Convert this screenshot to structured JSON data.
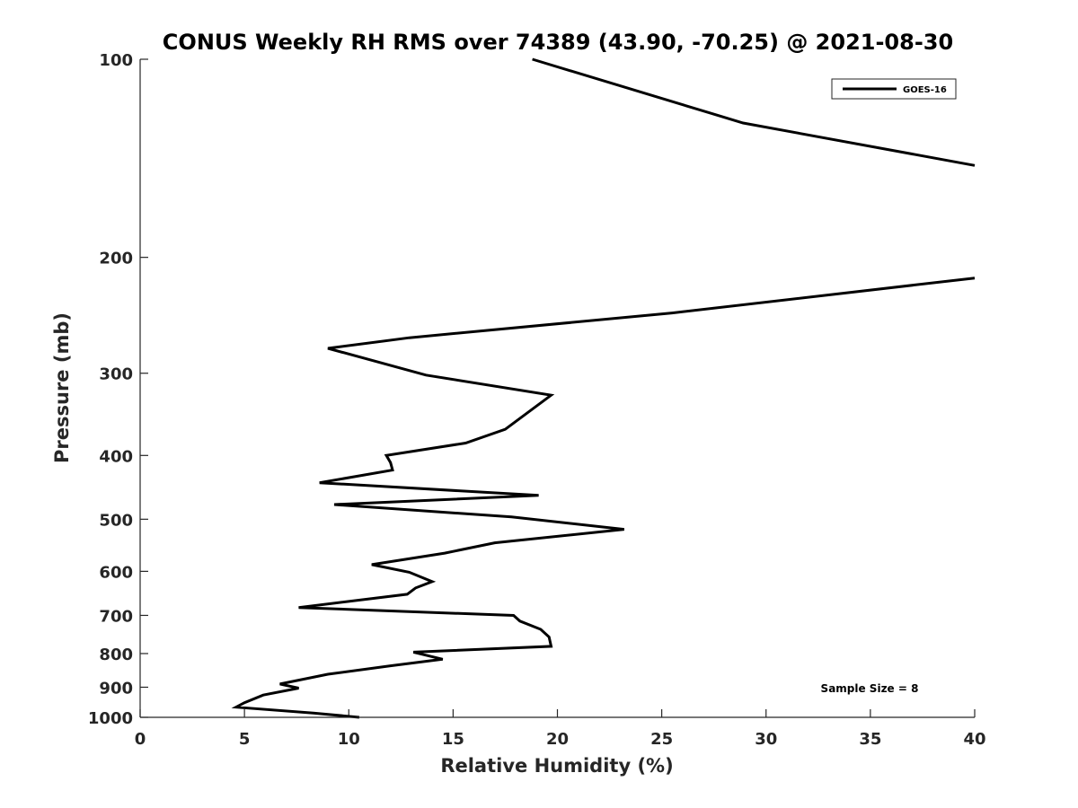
{
  "chart_data": {
    "type": "line",
    "title": "CONUS Weekly RH RMS over 74389 (43.90, -70.25) @ 2021-08-30",
    "xlabel": "Relative Humidity (%)",
    "ylabel": "Pressure (mb)",
    "xlim": [
      0,
      40
    ],
    "ylim": [
      100,
      1000
    ],
    "y_scale": "log",
    "y_reversed": true,
    "x_ticks": [
      "0",
      "5",
      "10",
      "15",
      "20",
      "25",
      "30",
      "35",
      "40"
    ],
    "y_ticks": [
      "100",
      "200",
      "300",
      "400",
      "500",
      "600",
      "700",
      "800",
      "900",
      "1000"
    ],
    "grid": false,
    "legend_position": "top-right",
    "annotation": "Sample Size = 8",
    "series": [
      {
        "name": "GOES-16",
        "color": "#000000",
        "x": [
          18.8,
          28.9,
          40.0
        ],
        "y": [
          100,
          125,
          145
        ]
      },
      {
        "name": "GOES-16",
        "color": "#000000",
        "x": [
          40.0,
          25.5,
          12.9,
          9.0,
          13.7,
          19.7,
          17.5,
          15.6,
          11.8,
          12.0,
          12.1,
          8.6,
          19.1,
          9.3,
          17.8,
          23.2,
          17.0,
          14.6,
          11.1,
          12.9,
          14.0,
          13.2,
          12.8,
          7.6,
          17.9,
          18.2,
          19.2,
          19.6,
          19.7,
          13.1,
          14.5,
          12.0,
          9.0,
          6.7,
          7.6,
          5.9,
          5.0,
          4.6,
          8.3,
          10.5
        ],
        "y": [
          215,
          243,
          265,
          275,
          302,
          324,
          365,
          383,
          400,
          410,
          421,
          440,
          460,
          475,
          496,
          518,
          543,
          563,
          586,
          602,
          622,
          636,
          650,
          681,
          700,
          714,
          735,
          755,
          780,
          796,
          816,
          835,
          860,
          890,
          903,
          925,
          950,
          965,
          985,
          1000
        ]
      }
    ]
  }
}
